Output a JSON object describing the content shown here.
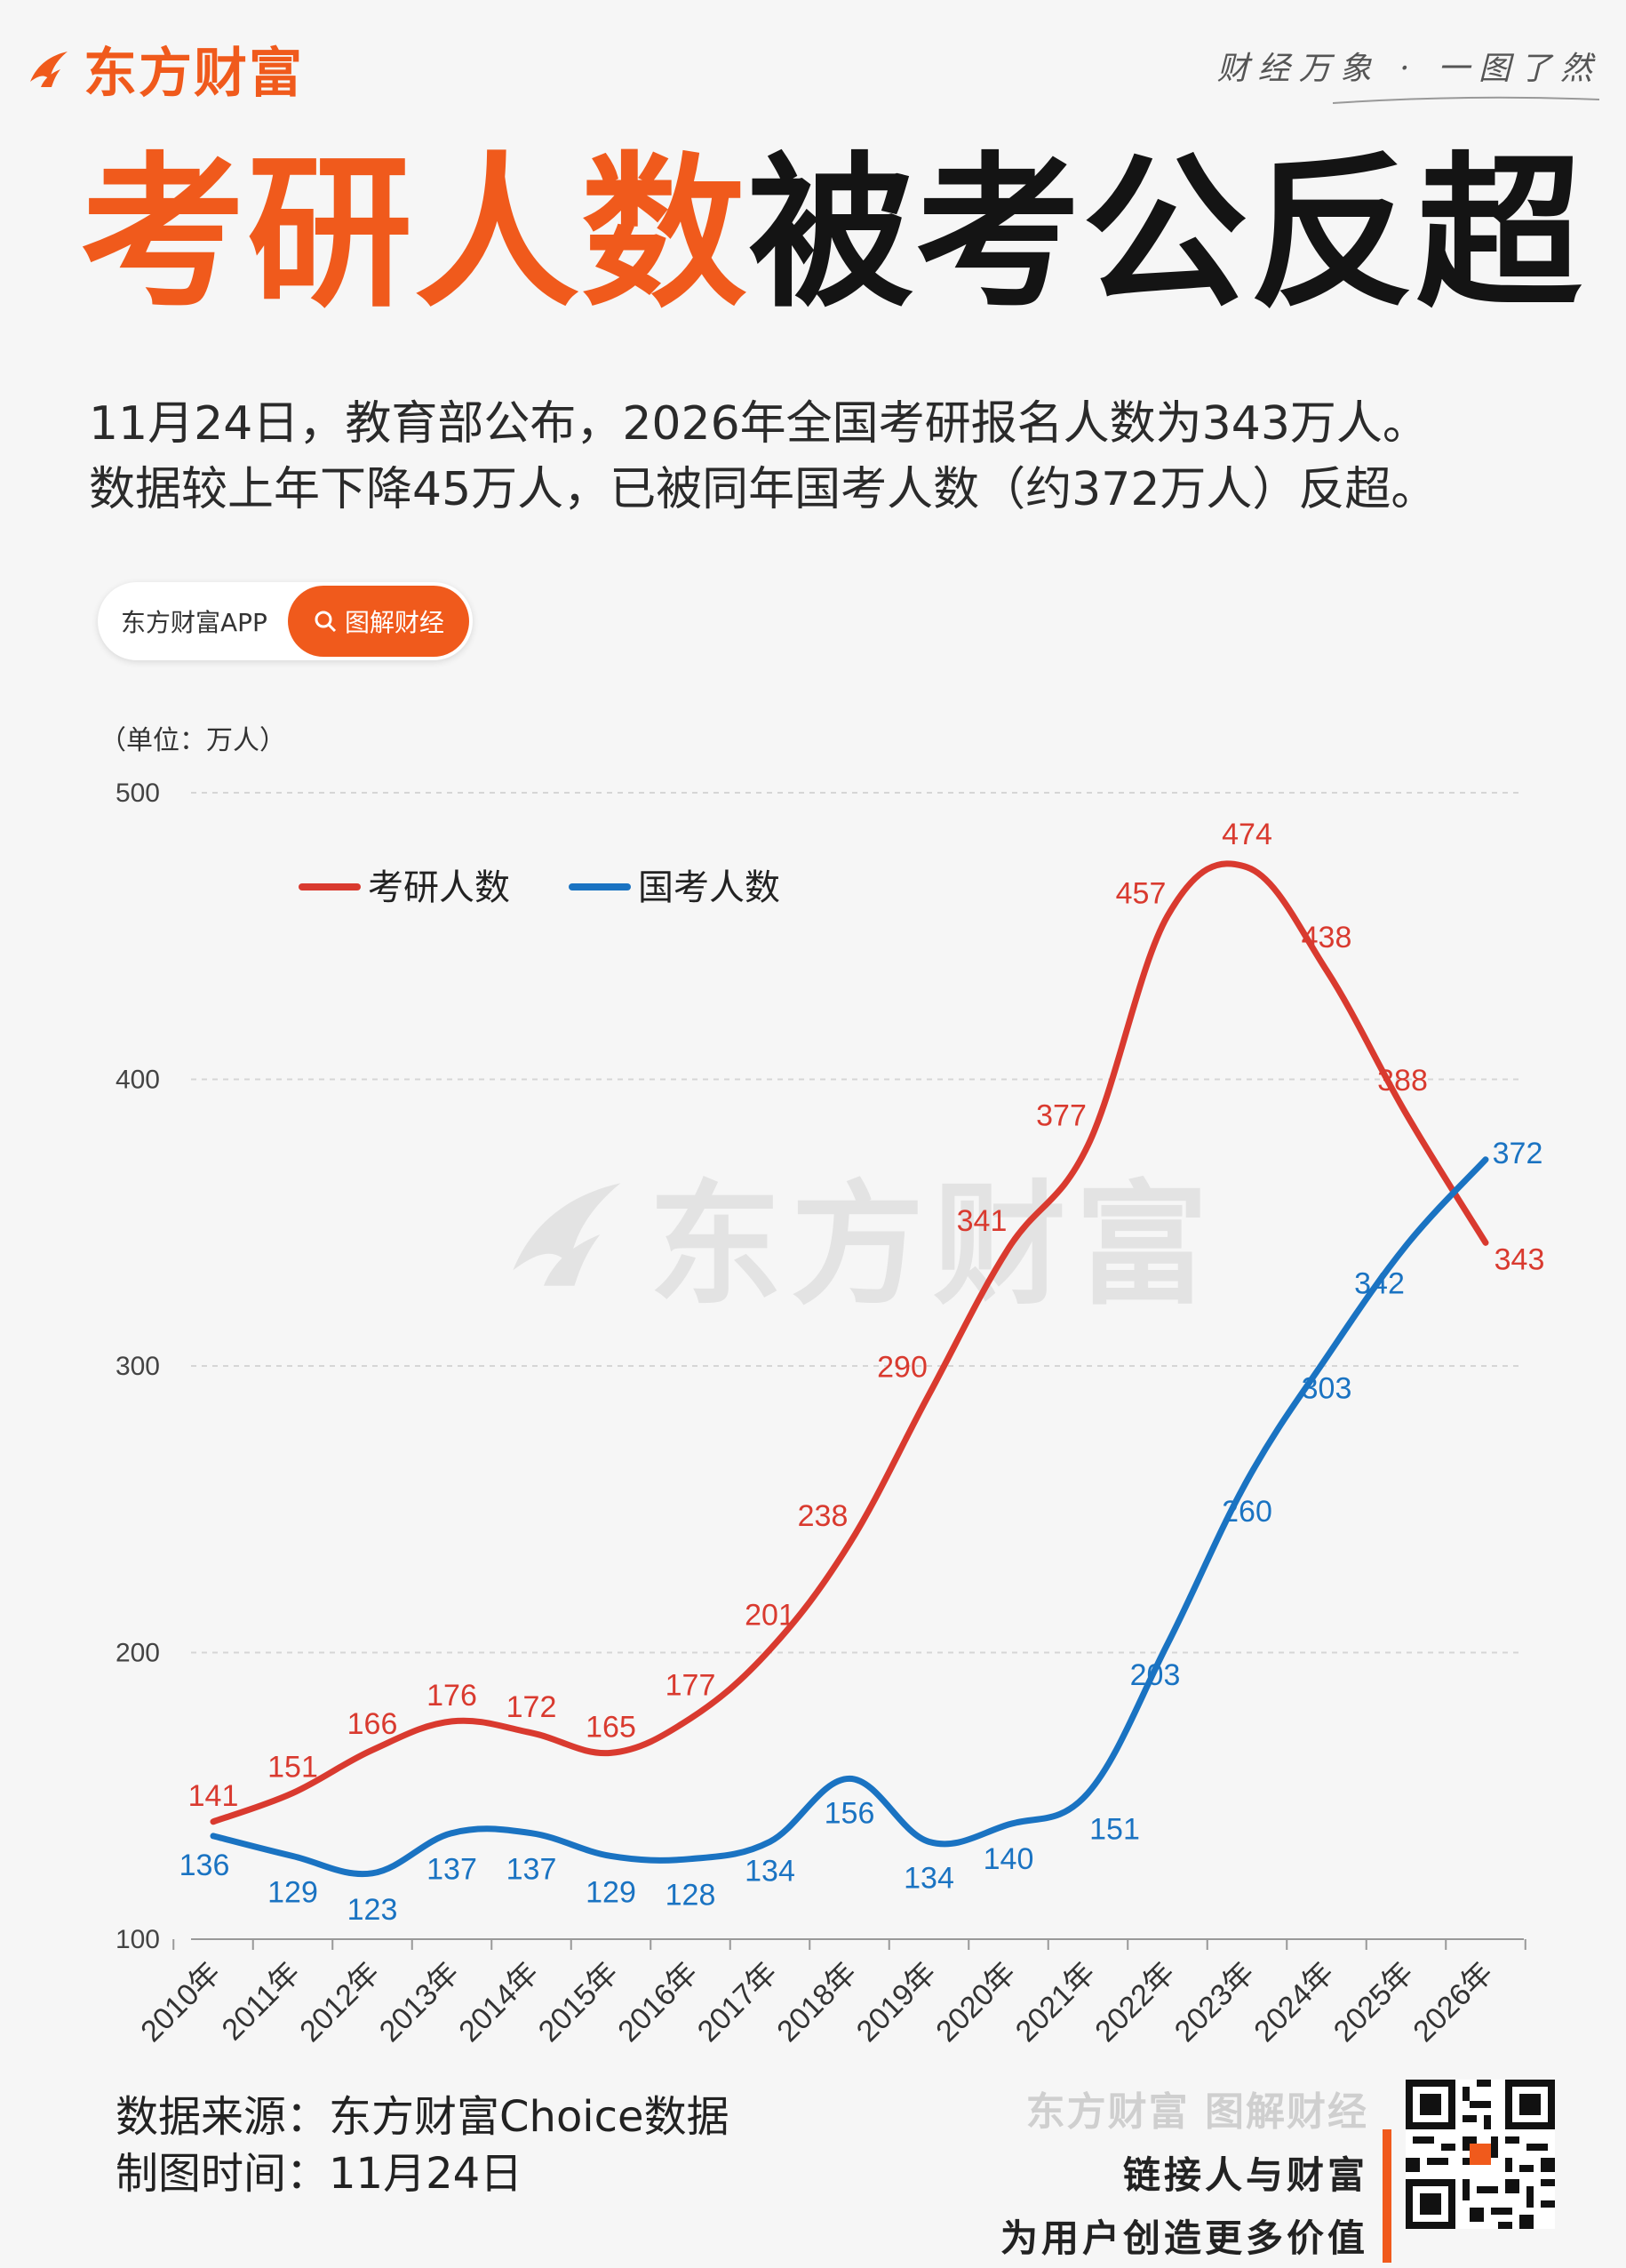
{
  "header": {
    "brand_name": "东方财富",
    "slogan": "财经万象 · 一图了然"
  },
  "headline": {
    "red_part": "考研人数",
    "black_part": "被考公反超"
  },
  "intro": {
    "line1": "11月24日，教育部公布，2026年全国考研报名人数为343万人。",
    "line2": "数据较上年下降45万人，已被同年国考人数（约372万人）反超。"
  },
  "pill": {
    "left_label": "东方财富APP",
    "right_label": "图解财经"
  },
  "chart_data": {
    "type": "line",
    "unit_label": "（单位：万人）",
    "categories": [
      "2010年",
      "2011年",
      "2012年",
      "2013年",
      "2014年",
      "2015年",
      "2016年",
      "2017年",
      "2018年",
      "2019年",
      "2020年",
      "2021年",
      "2022年",
      "2023年",
      "2024年",
      "2025年",
      "2026年"
    ],
    "ylim": [
      100,
      500
    ],
    "yticks": [
      100,
      200,
      300,
      400,
      500
    ],
    "grid": true,
    "legend_position": "top-left",
    "series": [
      {
        "name": "考研人数",
        "color": "#d93a2f",
        "values": [
          141,
          151,
          166,
          176,
          172,
          165,
          177,
          201,
          238,
          290,
          341,
          377,
          457,
          474,
          438,
          388,
          343
        ]
      },
      {
        "name": "国考人数",
        "color": "#1a73c2",
        "values": [
          136,
          129,
          123,
          137,
          137,
          129,
          128,
          134,
          156,
          134,
          140,
          151,
          203,
          260,
          303,
          342,
          372
        ]
      }
    ]
  },
  "watermark": "东方财富",
  "footer": {
    "source": "数据来源：东方财富Choice数据",
    "date": "制图时间：11月24日",
    "brand_tag": "东方财富 图解财经",
    "tagline1": "链接人与财富",
    "tagline2": "为用户创造更多价值"
  },
  "colors": {
    "brand_orange": "#f05a1c",
    "series_red": "#d93a2f",
    "series_blue": "#1a73c2"
  }
}
